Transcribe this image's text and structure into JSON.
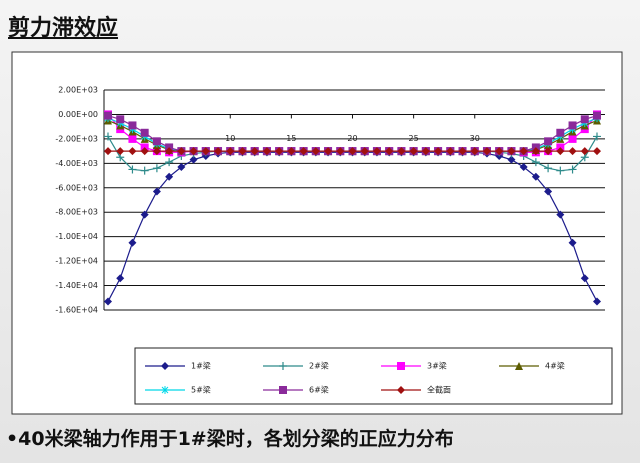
{
  "slide_title": "剪力滞效应",
  "caption": "•40米梁轴力作用于1#梁时，各划分梁的正应力分布",
  "chart_data": {
    "type": "line",
    "x": [
      0,
      1,
      2,
      3,
      4,
      5,
      6,
      7,
      8,
      9,
      10,
      11,
      12,
      13,
      14,
      15,
      16,
      17,
      18,
      19,
      20,
      21,
      22,
      23,
      24,
      25,
      26,
      27,
      28,
      29,
      30,
      31,
      32,
      33,
      34,
      35,
      36,
      37,
      38,
      39,
      40
    ],
    "xlim": [
      0,
      40
    ],
    "xticks": [
      10,
      15,
      20,
      25,
      30
    ],
    "ylim": [
      -16000,
      2000
    ],
    "yticks": [
      {
        "value": 2000,
        "label": "2.00E+03"
      },
      {
        "value": 0,
        "label": "0.00E+00"
      },
      {
        "value": -2000,
        "label": "-2.00E+03"
      },
      {
        "value": -4000,
        "label": "-4.00E+03"
      },
      {
        "value": -6000,
        "label": "-6.00E+03"
      },
      {
        "value": -8000,
        "label": "-8.00E+03"
      },
      {
        "value": -10000,
        "label": "-1.00E+04"
      },
      {
        "value": -12000,
        "label": "-1.20E+04"
      },
      {
        "value": -14000,
        "label": "-1.40E+04"
      },
      {
        "value": -16000,
        "label": "-1.60E+04"
      }
    ],
    "grid": true,
    "legend": "bottom",
    "series": [
      {
        "name": "1#梁",
        "color": "#1c1c8c",
        "marker": "diamond",
        "values": [
          -15300,
          -13400,
          -10500,
          -8200,
          -6300,
          -5100,
          -4300,
          -3700,
          -3400,
          -3200,
          -3100,
          -3100,
          -3100,
          -3100,
          -3100,
          -3100,
          -3100,
          -3100,
          -3100,
          -3100,
          -3100,
          -3100,
          -3100,
          -3100,
          -3100,
          -3100,
          -3100,
          -3100,
          -3100,
          -3100,
          -3100,
          -3200,
          -3400,
          -3700,
          -4300,
          -5100,
          -6300,
          -8200,
          -10500,
          -13400,
          -15300
        ]
      },
      {
        "name": "2#梁",
        "color": "#2e8b8b",
        "marker": "plus",
        "values": [
          -1800,
          -3500,
          -4500,
          -4600,
          -4400,
          -3900,
          -3400,
          -3200,
          -3100,
          -3000,
          -3000,
          -3000,
          -3000,
          -3000,
          -3000,
          -3000,
          -3000,
          -3000,
          -3000,
          -3000,
          -3000,
          -3000,
          -3000,
          -3000,
          -3000,
          -3000,
          -3000,
          -3000,
          -3000,
          -3000,
          -3000,
          -3000,
          -3100,
          -3200,
          -3400,
          -3900,
          -4400,
          -4600,
          -4500,
          -3500,
          -1800
        ]
      },
      {
        "name": "3#梁",
        "color": "#ff00ff",
        "marker": "square",
        "values": [
          0,
          -1200,
          -2000,
          -2700,
          -3000,
          -3100,
          -3100,
          -3000,
          -3000,
          -3000,
          -3000,
          -3000,
          -3000,
          -3000,
          -3000,
          -3000,
          -3000,
          -3000,
          -3000,
          -3000,
          -3000,
          -3000,
          -3000,
          -3000,
          -3000,
          -3000,
          -3000,
          -3000,
          -3000,
          -3000,
          -3000,
          -3000,
          -3000,
          -3000,
          -3100,
          -3100,
          -3000,
          -2700,
          -2000,
          -1200,
          0
        ]
      },
      {
        "name": "4#梁",
        "color": "#5c5c00",
        "marker": "triangle",
        "values": [
          -500,
          -900,
          -1400,
          -2000,
          -2500,
          -2900,
          -3000,
          -3000,
          -3000,
          -3000,
          -3000,
          -3000,
          -3000,
          -3000,
          -3000,
          -3000,
          -3000,
          -3000,
          -3000,
          -3000,
          -3000,
          -3000,
          -3000,
          -3000,
          -3000,
          -3000,
          -3000,
          -3000,
          -3000,
          -3000,
          -3000,
          -3000,
          -3000,
          -3000,
          -3000,
          -2900,
          -2500,
          -2000,
          -1400,
          -900,
          -500
        ]
      },
      {
        "name": "5#梁",
        "color": "#00d8e8",
        "marker": "star",
        "values": [
          -300,
          -700,
          -1200,
          -1800,
          -2400,
          -2800,
          -3000,
          -3000,
          -3000,
          -3000,
          -3000,
          -3000,
          -3000,
          -3000,
          -3000,
          -3000,
          -3000,
          -3000,
          -3000,
          -3000,
          -3000,
          -3000,
          -3000,
          -3000,
          -3000,
          -3000,
          -3000,
          -3000,
          -3000,
          -3000,
          -3000,
          -3000,
          -3000,
          -3000,
          -3000,
          -2800,
          -2400,
          -1800,
          -1200,
          -700,
          -300
        ]
      },
      {
        "name": "6#梁",
        "color": "#8a2a9a",
        "marker": "square",
        "values": [
          -100,
          -400,
          -900,
          -1500,
          -2200,
          -2700,
          -3000,
          -3000,
          -3000,
          -3000,
          -3000,
          -3000,
          -3000,
          -3000,
          -3000,
          -3000,
          -3000,
          -3000,
          -3000,
          -3000,
          -3000,
          -3000,
          -3000,
          -3000,
          -3000,
          -3000,
          -3000,
          -3000,
          -3000,
          -3000,
          -3000,
          -3000,
          -3000,
          -3000,
          -3000,
          -2700,
          -2200,
          -1500,
          -900,
          -400,
          -100
        ]
      },
      {
        "name": "全截面",
        "color": "#a01010",
        "marker": "diamond",
        "values": [
          -3000,
          -3000,
          -3000,
          -3000,
          -3000,
          -3000,
          -3000,
          -3000,
          -3000,
          -3000,
          -3000,
          -3000,
          -3000,
          -3000,
          -3000,
          -3000,
          -3000,
          -3000,
          -3000,
          -3000,
          -3000,
          -3000,
          -3000,
          -3000,
          -3000,
          -3000,
          -3000,
          -3000,
          -3000,
          -3000,
          -3000,
          -3000,
          -3000,
          -3000,
          -3000,
          -3000,
          -3000,
          -3000,
          -3000,
          -3000,
          -3000
        ]
      }
    ]
  }
}
